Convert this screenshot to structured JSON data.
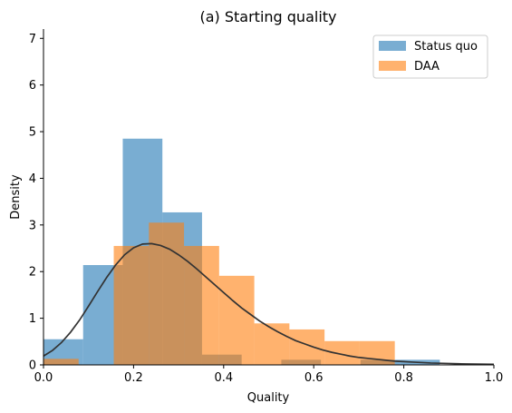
{
  "chart_data": {
    "type": "histogram",
    "title": "(a) Starting quality",
    "xlabel": "Quality",
    "ylabel": "Density",
    "xlim": [
      0.0,
      1.0
    ],
    "ylim": [
      0,
      7.2
    ],
    "xticks": [
      0.0,
      0.2,
      0.4,
      0.6,
      0.8,
      1.0
    ],
    "xtick_labels": [
      "0.0",
      "0.2",
      "0.4",
      "0.6",
      "0.8",
      "1.0"
    ],
    "yticks": [
      0,
      1,
      2,
      3,
      4,
      5,
      6,
      7
    ],
    "ytick_labels": [
      "0",
      "1",
      "2",
      "3",
      "4",
      "5",
      "6",
      "7"
    ],
    "grid": false,
    "legend_position": "top-right",
    "series": [
      {
        "name": "Status quo",
        "color": "#1f77b4",
        "opacity": 0.6,
        "bins": [
          {
            "x0": 0.0,
            "x1": 0.088,
            "value": 0.55
          },
          {
            "x0": 0.088,
            "x1": 0.176,
            "value": 2.14
          },
          {
            "x0": 0.176,
            "x1": 0.264,
            "value": 4.85
          },
          {
            "x0": 0.264,
            "x1": 0.352,
            "value": 3.27
          },
          {
            "x0": 0.352,
            "x1": 0.44,
            "value": 0.22
          },
          {
            "x0": 0.44,
            "x1": 0.528,
            "value": 0.0
          },
          {
            "x0": 0.528,
            "x1": 0.616,
            "value": 0.11
          },
          {
            "x0": 0.616,
            "x1": 0.704,
            "value": 0.0
          },
          {
            "x0": 0.704,
            "x1": 0.792,
            "value": 0.11
          },
          {
            "x0": 0.792,
            "x1": 0.88,
            "value": 0.11
          }
        ]
      },
      {
        "name": "DAA",
        "color": "#ff7f0e",
        "opacity": 0.6,
        "bins": [
          {
            "x0": 0.0,
            "x1": 0.078,
            "value": 0.13
          },
          {
            "x0": 0.078,
            "x1": 0.156,
            "value": 0.0
          },
          {
            "x0": 0.156,
            "x1": 0.234,
            "value": 2.55
          },
          {
            "x0": 0.234,
            "x1": 0.312,
            "value": 3.05
          },
          {
            "x0": 0.312,
            "x1": 0.39,
            "value": 2.55
          },
          {
            "x0": 0.39,
            "x1": 0.468,
            "value": 1.91
          },
          {
            "x0": 0.468,
            "x1": 0.546,
            "value": 0.89
          },
          {
            "x0": 0.546,
            "x1": 0.624,
            "value": 0.76
          },
          {
            "x0": 0.624,
            "x1": 0.702,
            "value": 0.51
          },
          {
            "x0": 0.702,
            "x1": 0.78,
            "value": 0.51
          }
        ]
      }
    ],
    "curve": {
      "color": "#333333",
      "x": [
        0.0,
        0.02,
        0.04,
        0.06,
        0.08,
        0.1,
        0.12,
        0.14,
        0.16,
        0.18,
        0.2,
        0.22,
        0.24,
        0.26,
        0.28,
        0.3,
        0.32,
        0.34,
        0.36,
        0.38,
        0.4,
        0.42,
        0.44,
        0.46,
        0.48,
        0.5,
        0.52,
        0.54,
        0.56,
        0.58,
        0.6,
        0.62,
        0.64,
        0.66,
        0.68,
        0.7,
        0.72,
        0.74,
        0.76,
        0.78,
        0.8,
        0.82,
        0.84,
        0.86,
        0.88,
        0.9,
        0.92,
        0.94,
        0.96,
        0.98,
        1.0
      ],
      "y": [
        0.19,
        0.31,
        0.48,
        0.7,
        0.96,
        1.26,
        1.57,
        1.87,
        2.14,
        2.36,
        2.51,
        2.59,
        2.6,
        2.56,
        2.48,
        2.36,
        2.22,
        2.06,
        1.89,
        1.72,
        1.55,
        1.38,
        1.22,
        1.08,
        0.94,
        0.82,
        0.71,
        0.61,
        0.52,
        0.45,
        0.38,
        0.32,
        0.27,
        0.23,
        0.19,
        0.16,
        0.14,
        0.12,
        0.1,
        0.08,
        0.07,
        0.06,
        0.05,
        0.04,
        0.035,
        0.03,
        0.025,
        0.02,
        0.017,
        0.014,
        0.012
      ]
    }
  }
}
